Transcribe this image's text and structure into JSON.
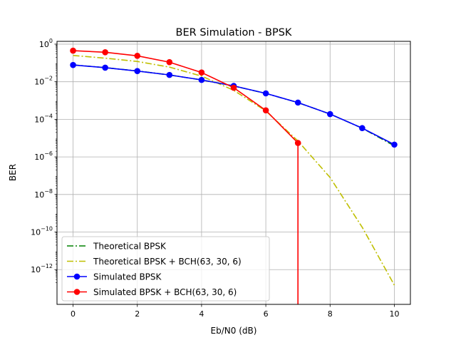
{
  "chart_data": {
    "type": "line",
    "title": "BER Simulation - BPSK",
    "xlabel": "Eb/N0 (dB)",
    "ylabel": "BER",
    "xlim": [
      -0.5,
      10.5
    ],
    "ylim_log10": [
      -13.85,
      0.15
    ],
    "y_scale": "log",
    "grid": true,
    "legend_position": "bottom-left",
    "x_ticks": [
      0,
      2,
      4,
      6,
      8,
      10
    ],
    "x_tick_labels": [
      "0",
      "2",
      "4",
      "6",
      "8",
      "10"
    ],
    "y_ticks_log10": [
      0,
      -2,
      -4,
      -6,
      -8,
      -10,
      -12
    ],
    "y_tick_labels": [
      {
        "base": "10",
        "exp": "0"
      },
      {
        "base": "10",
        "exp": "−2"
      },
      {
        "base": "10",
        "exp": "−4"
      },
      {
        "base": "10",
        "exp": "−6"
      },
      {
        "base": "10",
        "exp": "−8"
      },
      {
        "base": "10",
        "exp": "−10"
      },
      {
        "base": "10",
        "exp": "−12"
      }
    ],
    "series": [
      {
        "name": "Theoretical BPSK",
        "color": "#008000",
        "style": "dashdot",
        "marker": "none",
        "x": [
          0,
          1,
          2,
          3,
          4,
          5,
          6,
          7,
          8,
          9,
          10
        ],
        "y": [
          0.0786,
          0.0563,
          0.0375,
          0.0229,
          0.0125,
          0.00595,
          0.00239,
          0.000773,
          0.000191,
          3.36e-05,
          3.9e-06
        ]
      },
      {
        "name": "Theoretical BPSK + BCH(63, 30, 6)",
        "color": "#bfbf00",
        "style": "dashdot",
        "marker": "none",
        "x": [
          0,
          1,
          2,
          3,
          4,
          5,
          6,
          7,
          8,
          9,
          10
        ],
        "y": [
          0.25,
          0.18,
          0.12,
          0.06,
          0.02,
          0.0035,
          0.00028,
          7e-06,
          8e-08,
          1.8e-10,
          1.5e-13
        ]
      },
      {
        "name": "Simulated BPSK",
        "color": "#0000ff",
        "style": "solid",
        "marker": "circle",
        "x": [
          0,
          1,
          2,
          3,
          4,
          5,
          6,
          7,
          8,
          9,
          10
        ],
        "y": [
          0.078,
          0.056,
          0.037,
          0.023,
          0.0125,
          0.006,
          0.0024,
          0.00078,
          0.00019,
          3.4e-05,
          4.5e-06
        ]
      },
      {
        "name": "Simulated BPSK + BCH(63, 30, 6)",
        "color": "#ff0000",
        "style": "solid",
        "marker": "circle",
        "x": [
          0,
          1,
          2,
          3,
          4,
          5,
          6,
          7
        ],
        "y": [
          0.45,
          0.37,
          0.24,
          0.11,
          0.031,
          0.0048,
          0.0003,
          5.5e-06
        ],
        "drop_to_zero_at_x": 7
      }
    ]
  }
}
